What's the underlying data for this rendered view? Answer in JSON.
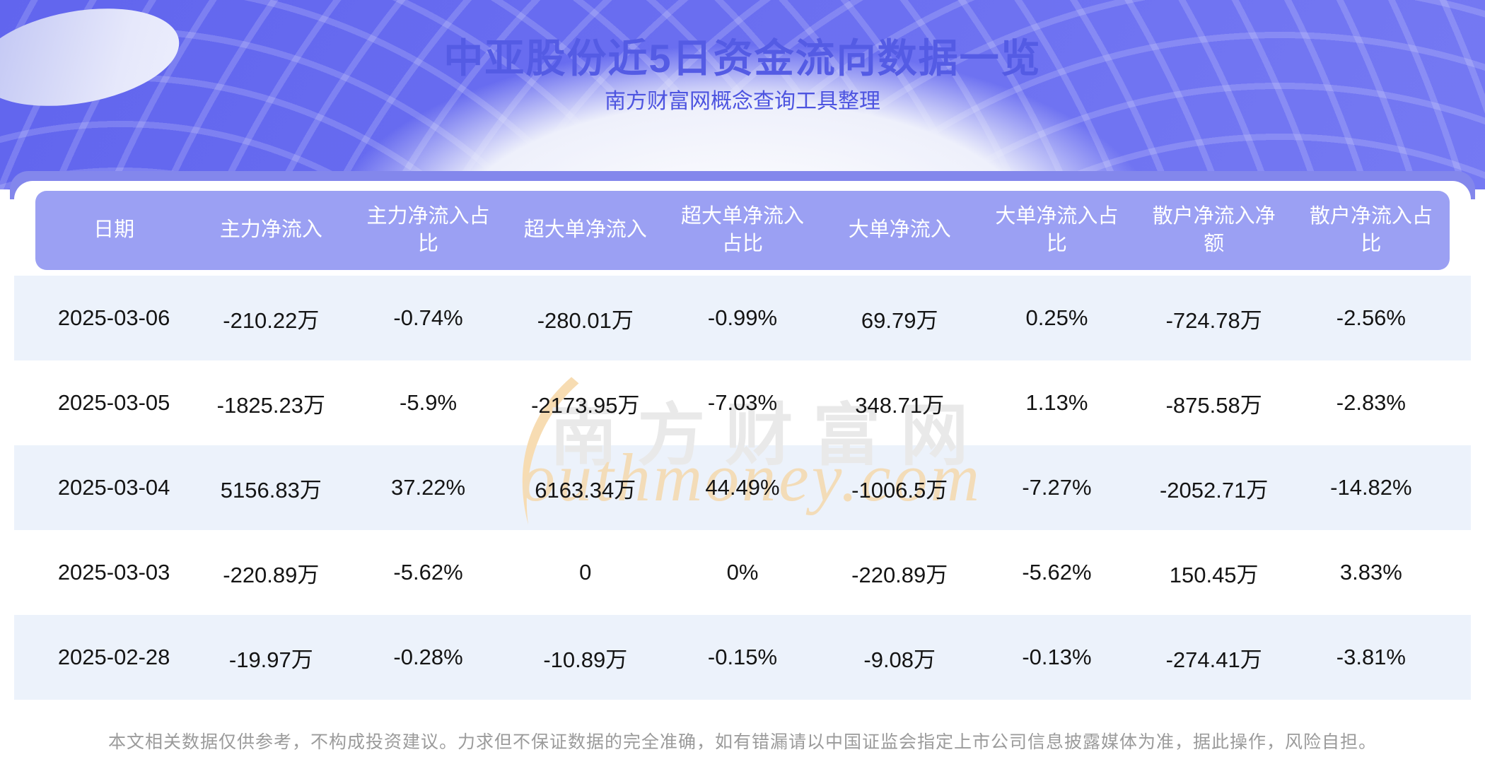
{
  "banner": {
    "title": "中亚股份近5日资金流向数据一览",
    "subtitle": "南方财富网概念查询工具整理"
  },
  "watermark": {
    "cn": "南方财富网",
    "en": "outhmoney.com"
  },
  "chart_data": {
    "type": "table",
    "title": "中亚股份近5日资金流向数据一览",
    "columns": [
      "日期",
      "主力净流入",
      "主力净流入占比",
      "超大单净流入",
      "超大单净流入占比",
      "大单净流入",
      "大单净流入占比",
      "散户净流入净额",
      "散户净流入占比"
    ],
    "rows": [
      [
        "2025-03-06",
        "-210.22万",
        "-0.74%",
        "-280.01万",
        "-0.99%",
        "69.79万",
        "0.25%",
        "-724.78万",
        "-2.56%"
      ],
      [
        "2025-03-05",
        "-1825.23万",
        "-5.9%",
        "-2173.95万",
        "-7.03%",
        "348.71万",
        "1.13%",
        "-875.58万",
        "-2.83%"
      ],
      [
        "2025-03-04",
        "5156.83万",
        "37.22%",
        "6163.34万",
        "44.49%",
        "-1006.5万",
        "-7.27%",
        "-2052.71万",
        "-14.82%"
      ],
      [
        "2025-03-03",
        "-220.89万",
        "-5.62%",
        "0",
        "0%",
        "-220.89万",
        "-5.62%",
        "150.45万",
        "3.83%"
      ],
      [
        "2025-02-28",
        "-19.97万",
        "-0.28%",
        "-10.89万",
        "-0.15%",
        "-9.08万",
        "-0.13%",
        "-274.41万",
        "-3.81%"
      ]
    ]
  },
  "footer": {
    "disclaimer": "本文相关数据仅供参考，不构成投资建议。力求但不保证数据的完全准确，如有错漏请以中国证监会指定上市公司信息披露媒体为准，据此操作，风险自担。"
  },
  "colors": {
    "banner_purple": "#6a6ef0",
    "band_purple": "#8387ec",
    "header_purple": "#9ba0f3",
    "row_alt_blue": "#ecf2fb",
    "title_indigo": "#545be4",
    "watermark_cream": "#f3dcb8",
    "watermark_gray": "#e9e9e9",
    "footer_gray": "#9b9b9b"
  }
}
